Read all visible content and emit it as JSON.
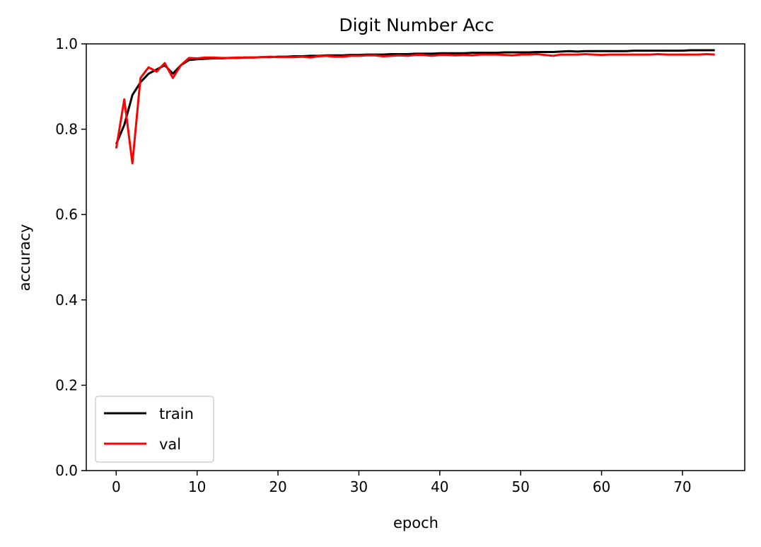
{
  "chart_data": {
    "type": "line",
    "title": "Digit Number Acc",
    "xlabel": "epoch",
    "ylabel": "accuracy",
    "xlim": [
      -3.7,
      77.7
    ],
    "ylim": [
      0.0,
      1.0
    ],
    "xticks": [
      0,
      10,
      20,
      30,
      40,
      50,
      60,
      70
    ],
    "yticks": [
      0.0,
      0.2,
      0.4,
      0.6,
      0.8,
      1.0
    ],
    "xtick_labels": [
      "0",
      "10",
      "20",
      "30",
      "40",
      "50",
      "60",
      "70"
    ],
    "ytick_labels": [
      "0.0",
      "0.2",
      "0.4",
      "0.6",
      "0.8",
      "1.0"
    ],
    "grid": false,
    "legend_position": "lower-left",
    "series": [
      {
        "name": "train",
        "color": "#000000",
        "x": [
          0,
          1,
          2,
          3,
          4,
          5,
          6,
          7,
          8,
          9,
          10,
          11,
          12,
          13,
          14,
          15,
          16,
          17,
          18,
          19,
          20,
          21,
          22,
          23,
          24,
          25,
          26,
          27,
          28,
          29,
          30,
          31,
          32,
          33,
          34,
          35,
          36,
          37,
          38,
          39,
          40,
          41,
          42,
          43,
          44,
          45,
          46,
          47,
          48,
          49,
          50,
          51,
          52,
          53,
          54,
          55,
          56,
          57,
          58,
          59,
          60,
          61,
          62,
          63,
          64,
          65,
          66,
          67,
          68,
          69,
          70,
          71,
          72,
          73,
          74
        ],
        "values": [
          0.765,
          0.81,
          0.88,
          0.91,
          0.93,
          0.94,
          0.95,
          0.93,
          0.95,
          0.962,
          0.964,
          0.965,
          0.966,
          0.966,
          0.967,
          0.967,
          0.968,
          0.968,
          0.969,
          0.969,
          0.97,
          0.97,
          0.971,
          0.971,
          0.972,
          0.972,
          0.973,
          0.973,
          0.973,
          0.974,
          0.974,
          0.975,
          0.975,
          0.975,
          0.976,
          0.976,
          0.976,
          0.977,
          0.977,
          0.977,
          0.978,
          0.978,
          0.978,
          0.978,
          0.979,
          0.979,
          0.979,
          0.979,
          0.98,
          0.98,
          0.98,
          0.98,
          0.981,
          0.981,
          0.981,
          0.982,
          0.983,
          0.982,
          0.983,
          0.983,
          0.983,
          0.983,
          0.983,
          0.983,
          0.984,
          0.984,
          0.984,
          0.984,
          0.984,
          0.984,
          0.984,
          0.985,
          0.985,
          0.985,
          0.985
        ]
      },
      {
        "name": "val",
        "color": "#ff0000",
        "x": [
          0,
          1,
          2,
          3,
          4,
          5,
          6,
          7,
          8,
          9,
          10,
          11,
          12,
          13,
          14,
          15,
          16,
          17,
          18,
          19,
          20,
          21,
          22,
          23,
          24,
          25,
          26,
          27,
          28,
          29,
          30,
          31,
          32,
          33,
          34,
          35,
          36,
          37,
          38,
          39,
          40,
          41,
          42,
          43,
          44,
          45,
          46,
          47,
          48,
          49,
          50,
          51,
          52,
          53,
          54,
          55,
          56,
          57,
          58,
          59,
          60,
          61,
          62,
          63,
          64,
          65,
          66,
          67,
          68,
          69,
          70,
          71,
          72,
          73,
          74
        ],
        "values": [
          0.755,
          0.87,
          0.72,
          0.92,
          0.945,
          0.935,
          0.955,
          0.92,
          0.95,
          0.967,
          0.966,
          0.968,
          0.968,
          0.967,
          0.967,
          0.968,
          0.968,
          0.968,
          0.969,
          0.97,
          0.969,
          0.969,
          0.969,
          0.97,
          0.968,
          0.971,
          0.972,
          0.97,
          0.97,
          0.972,
          0.972,
          0.973,
          0.973,
          0.971,
          0.972,
          0.973,
          0.972,
          0.974,
          0.974,
          0.972,
          0.974,
          0.974,
          0.973,
          0.974,
          0.973,
          0.975,
          0.975,
          0.975,
          0.974,
          0.973,
          0.975,
          0.975,
          0.976,
          0.974,
          0.972,
          0.975,
          0.975,
          0.975,
          0.976,
          0.975,
          0.974,
          0.975,
          0.975,
          0.975,
          0.975,
          0.975,
          0.975,
          0.976,
          0.975,
          0.975,
          0.975,
          0.975,
          0.975,
          0.976,
          0.975
        ]
      }
    ]
  }
}
